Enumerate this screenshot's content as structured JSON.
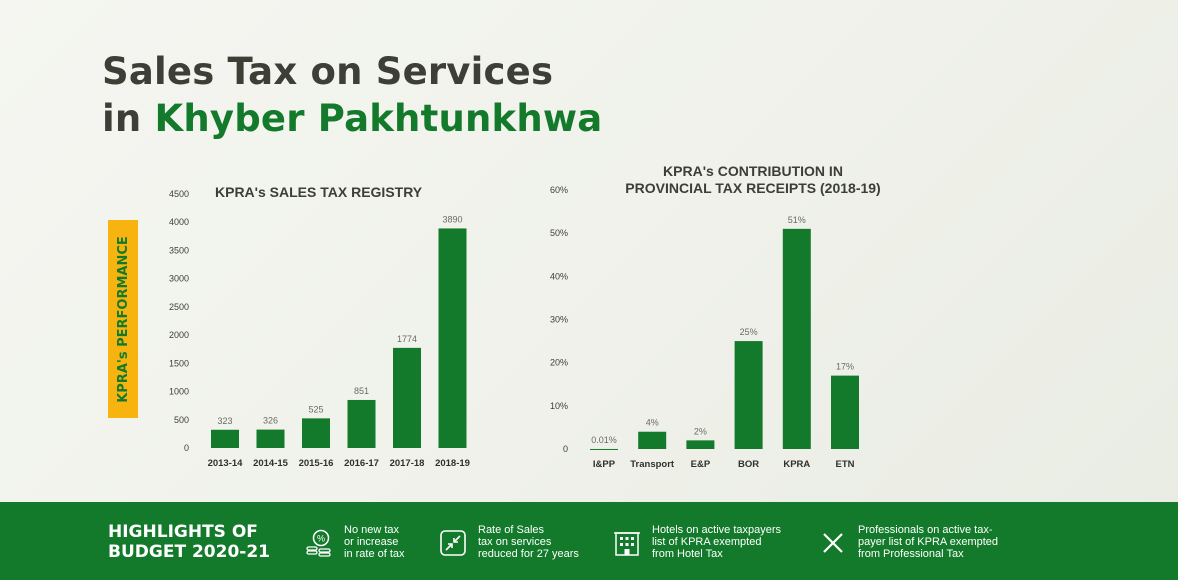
{
  "title": {
    "line1": "Sales Tax on Services",
    "line2_prefix": "in ",
    "line2_green": "Khyber Pakhtunkhwa"
  },
  "side_label": "KPRA's PERFORMANCE",
  "colors": {
    "bar": "#137a2b",
    "accent": "#f7b30f",
    "title": "#3d3f36",
    "footer": "#137a2b"
  },
  "chart_data": [
    {
      "type": "bar",
      "title": "KPRA's SALES TAX REGISTRY",
      "categories": [
        "2013-14",
        "2014-15",
        "2015-16",
        "2016-17",
        "2017-18",
        "2018-19"
      ],
      "values": [
        323,
        326,
        525,
        851,
        1774,
        3890
      ],
      "data_labels": [
        "323",
        "326",
        "525",
        "851",
        "1774",
        "3890"
      ],
      "yticks": [
        0,
        500,
        1000,
        1500,
        2000,
        2500,
        3000,
        3500,
        4000,
        4500
      ],
      "ylim": [
        0,
        4500
      ],
      "grid": false
    },
    {
      "type": "bar",
      "title": [
        "KPRA's CONTRIBUTION IN",
        "PROVINCIAL TAX RECEIPTS (2018-19)"
      ],
      "categories": [
        "I&PP",
        "Transport",
        "E&P",
        "BOR",
        "KPRA",
        "ETN"
      ],
      "values": [
        0.01,
        4,
        2,
        25,
        51,
        17
      ],
      "data_labels": [
        "0.01%",
        "4%",
        "2%",
        "25%",
        "51%",
        "17%"
      ],
      "yticks": [
        "0",
        "10%",
        "20%",
        "30%",
        "40%",
        "50%",
        "60%"
      ],
      "ylim": [
        0,
        60
      ],
      "grid": false
    }
  ],
  "footer": {
    "title_line1": "HIGHLIGHTS OF",
    "title_line2": "BUDGET 2020-21",
    "items": [
      {
        "icon": "percent-coins-icon",
        "lines": [
          "No new tax",
          "or increase",
          "in rate of tax"
        ]
      },
      {
        "icon": "shrink-arrows-icon",
        "lines": [
          "Rate of Sales",
          "tax on services",
          "reduced for 27 years"
        ]
      },
      {
        "icon": "hotel-building-icon",
        "lines": [
          "Hotels on active taxpayers",
          "list of KPRA exempted",
          "from Hotel Tax"
        ]
      },
      {
        "icon": "close-x-icon",
        "lines": [
          "Professionals on active tax-",
          "payer list of KPRA exempted",
          "from Professional Tax"
        ]
      }
    ]
  }
}
